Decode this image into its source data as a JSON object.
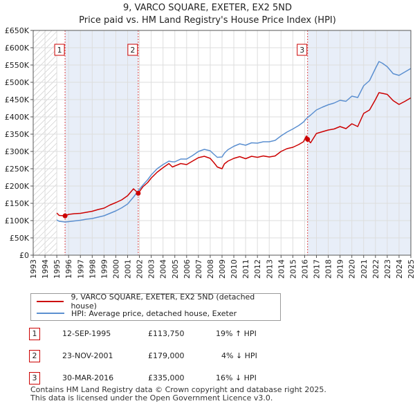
{
  "title": {
    "line1": "9, VARCO SQUARE, EXETER, EX2 5ND",
    "line2": "Price paid vs. HM Land Registry's House Price Index (HPI)"
  },
  "legend": {
    "price_label": "9, VARCO SQUARE, EXETER, EX2 5ND (detached house)",
    "hpi_label": "HPI: Average price, detached house, Exeter"
  },
  "transactions": [
    {
      "num": "1",
      "date": "12-SEP-1995",
      "price": "£113,750",
      "hpi": "19% ↑ HPI"
    },
    {
      "num": "2",
      "date": "23-NOV-2001",
      "price": "£179,000",
      "hpi": "4% ↓ HPI"
    },
    {
      "num": "3",
      "date": "30-MAR-2016",
      "price": "£335,000",
      "hpi": "16% ↓ HPI"
    }
  ],
  "footer": {
    "line1": "Contains HM Land Registry data © Crown copyright and database right 2025.",
    "line2": "This data is licensed under the Open Government Licence v3.0."
  },
  "chart_data": {
    "type": "line",
    "title": "9, VARCO SQUARE, EXETER, EX2 5ND",
    "subtitle": "Price paid vs. HM Land Registry's House Price Index (HPI)",
    "xlabel": "",
    "ylabel": "",
    "xlim": [
      1993,
      2025
    ],
    "ylim": [
      0,
      650000
    ],
    "yticks": [
      0,
      50000,
      100000,
      150000,
      200000,
      250000,
      300000,
      350000,
      400000,
      450000,
      500000,
      550000,
      600000,
      650000
    ],
    "ytick_labels": [
      "£0",
      "£50K",
      "£100K",
      "£150K",
      "£200K",
      "£250K",
      "£300K",
      "£350K",
      "£400K",
      "£450K",
      "£500K",
      "£550K",
      "£600K",
      "£650K"
    ],
    "xticks": [
      1993,
      1994,
      1995,
      1996,
      1997,
      1998,
      1999,
      2000,
      2001,
      2002,
      2003,
      2004,
      2005,
      2006,
      2007,
      2008,
      2009,
      2010,
      2011,
      2012,
      2013,
      2014,
      2015,
      2016,
      2017,
      2018,
      2019,
      2020,
      2021,
      2022,
      2023,
      2024,
      2025
    ],
    "hatched_until": 1995.0,
    "shaded_ranges": [
      [
        1995.7,
        2001.9
      ],
      [
        2016.25,
        2025
      ]
    ],
    "colors": {
      "price": "#cc0000",
      "hpi": "#5b8fd0",
      "grid": "#dddddd",
      "shade": "#e8eef8",
      "vline": "#dd4444"
    },
    "series": [
      {
        "name": "9, VARCO SQUARE, EXETER, EX2 5ND (detached house)",
        "x": [
          1995.0,
          1995.2,
          1995.7,
          1996.0,
          1996.5,
          1997.0,
          1997.5,
          1998.0,
          1998.5,
          1999.0,
          1999.5,
          2000.0,
          2000.5,
          2001.0,
          2001.5,
          2001.9,
          2002.3,
          2002.7,
          2003.0,
          2003.5,
          2004.0,
          2004.5,
          2004.8,
          2005.0,
          2005.5,
          2006.0,
          2006.5,
          2007.0,
          2007.5,
          2008.0,
          2008.3,
          2008.6,
          2009.0,
          2009.2,
          2009.5,
          2010.0,
          2010.5,
          2011.0,
          2011.5,
          2012.0,
          2012.5,
          2013.0,
          2013.5,
          2014.0,
          2014.5,
          2015.0,
          2015.5,
          2015.9,
          2016.15,
          2016.25,
          2016.5,
          2017.0,
          2017.5,
          2018.0,
          2018.5,
          2019.0,
          2019.5,
          2020.0,
          2020.5,
          2021.0,
          2021.5,
          2022.0,
          2022.3,
          2022.6,
          2023.0,
          2023.5,
          2024.0,
          2024.5,
          2025.0
        ],
        "values": [
          122000,
          115000,
          113750,
          118000,
          120000,
          121000,
          124000,
          127000,
          132000,
          136000,
          145000,
          152000,
          160000,
          172000,
          192000,
          179000,
          198000,
          210000,
          223000,
          240000,
          253000,
          265000,
          255000,
          258000,
          265000,
          262000,
          272000,
          282000,
          286000,
          280000,
          268000,
          255000,
          250000,
          264000,
          272000,
          280000,
          285000,
          279000,
          286000,
          283000,
          287000,
          284000,
          287000,
          300000,
          308000,
          312000,
          320000,
          328000,
          345000,
          335000,
          325000,
          352000,
          357000,
          362000,
          365000,
          372000,
          366000,
          380000,
          372000,
          410000,
          420000,
          450000,
          470000,
          468000,
          465000,
          447000,
          436000,
          445000,
          455000
        ]
      },
      {
        "name": "HPI: Average price, detached house, Exeter",
        "x": [
          1995.0,
          1995.2,
          1995.7,
          1996.0,
          1996.5,
          1997.0,
          1997.5,
          1998.0,
          1998.5,
          1999.0,
          1999.5,
          2000.0,
          2000.5,
          2001.0,
          2001.5,
          2001.9,
          2002.3,
          2002.7,
          2003.0,
          2003.5,
          2004.0,
          2004.5,
          2004.8,
          2005.0,
          2005.5,
          2006.0,
          2006.5,
          2007.0,
          2007.5,
          2008.0,
          2008.3,
          2008.6,
          2009.0,
          2009.2,
          2009.5,
          2010.0,
          2010.5,
          2011.0,
          2011.5,
          2012.0,
          2012.5,
          2013.0,
          2013.5,
          2014.0,
          2014.5,
          2015.0,
          2015.5,
          2015.9,
          2016.15,
          2016.25,
          2016.5,
          2017.0,
          2017.5,
          2018.0,
          2018.5,
          2019.0,
          2019.5,
          2020.0,
          2020.5,
          2021.0,
          2021.5,
          2022.0,
          2022.3,
          2022.6,
          2023.0,
          2023.5,
          2024.0,
          2024.5,
          2025.0
        ],
        "values": [
          102000,
          98000,
          96000,
          97000,
          99000,
          101000,
          104000,
          106000,
          110000,
          114000,
          121000,
          128000,
          137000,
          148000,
          168000,
          186000,
          203000,
          218000,
          232000,
          250000,
          262000,
          272000,
          270000,
          270000,
          278000,
          278000,
          288000,
          300000,
          306000,
          302000,
          292000,
          283000,
          284000,
          295000,
          305000,
          315000,
          322000,
          318000,
          325000,
          324000,
          328000,
          328000,
          332000,
          345000,
          356000,
          365000,
          375000,
          385000,
          395000,
          398000,
          405000,
          420000,
          428000,
          435000,
          440000,
          448000,
          445000,
          460000,
          456000,
          490000,
          505000,
          540000,
          560000,
          555000,
          545000,
          525000,
          520000,
          530000,
          540000
        ]
      }
    ],
    "markers": [
      {
        "label": "1",
        "x": 1995.7,
        "value": 113750
      },
      {
        "label": "2",
        "x": 2001.9,
        "value": 179000
      },
      {
        "label": "3",
        "x": 2016.25,
        "value": 335000
      }
    ]
  }
}
